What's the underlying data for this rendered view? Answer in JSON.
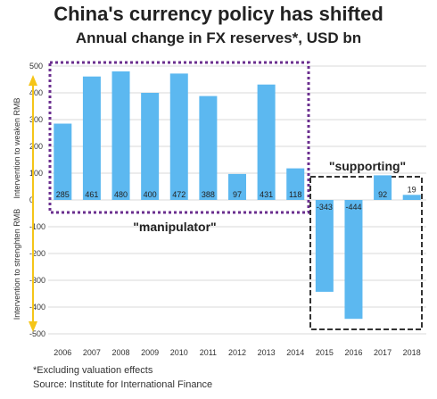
{
  "chart_data": {
    "type": "bar",
    "title": "China's currency policy has shifted",
    "subtitle": "Annual change in FX reserves*, USD bn",
    "categories": [
      "2006",
      "2007",
      "2008",
      "2009",
      "2010",
      "2011",
      "2012",
      "2013",
      "2014",
      "2015",
      "2016",
      "2017",
      "2018"
    ],
    "values": [
      285,
      461,
      480,
      400,
      472,
      388,
      97,
      431,
      118,
      -343,
      -444,
      92,
      19
    ],
    "value_labels": [
      "285",
      "461",
      "480",
      "400",
      "472",
      "388",
      "97",
      "431",
      "118",
      "-343",
      "-444",
      "92",
      "19"
    ],
    "ylim": [
      -500,
      500
    ],
    "yticks": [
      "500",
      "400",
      "300",
      "200",
      "100",
      "0",
      "-100",
      "-200",
      "-300",
      "-400",
      "-500"
    ],
    "ylabel_upper": "Intervention to weaken RMB",
    "ylabel_lower": "Intervention to strenghten RMB",
    "bar_color": "#5cb8f0",
    "annotations": {
      "manipulator": "\"manipulator\"",
      "supporting": "\"supporting\""
    },
    "box_colors": {
      "manipulator": "#6b2f8f",
      "supporting": "#333333"
    },
    "arrow_color": "#f5c518",
    "grid": true,
    "legend": "none"
  },
  "footnote": "*Excluding valuation effects",
  "source": "Source: Institute for International Finance"
}
